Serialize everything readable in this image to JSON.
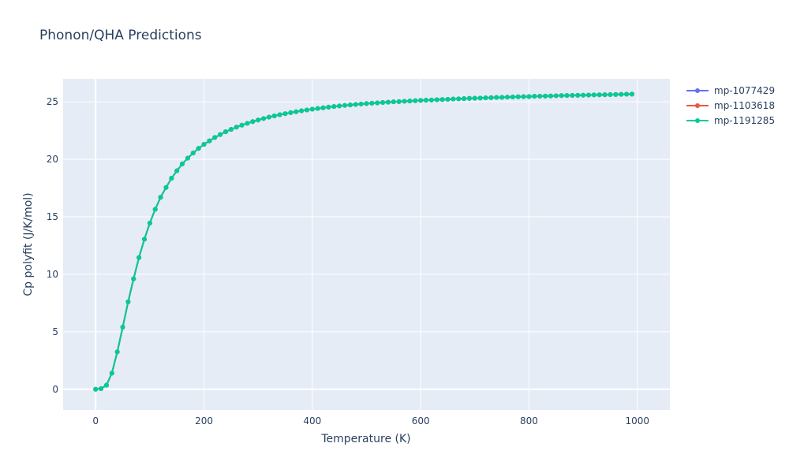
{
  "chart_data": {
    "type": "line",
    "title": "Phonon/QHA Predictions",
    "xlabel": "Temperature (K)",
    "ylabel": "Cp polyfit (J/K/mol)",
    "xlim": [
      -60,
      1060
    ],
    "ylim": [
      -1.8,
      27.0
    ],
    "xticks": [
      0,
      200,
      400,
      600,
      800,
      1000
    ],
    "yticks": [
      0,
      5,
      10,
      15,
      20,
      25
    ],
    "grid": true,
    "legend_position": "top-right",
    "x": [
      0,
      10,
      20,
      30,
      40,
      50,
      60,
      70,
      80,
      90,
      100,
      110,
      120,
      130,
      140,
      150,
      160,
      170,
      180,
      190,
      200,
      210,
      220,
      230,
      240,
      250,
      260,
      270,
      280,
      290,
      300,
      310,
      320,
      330,
      340,
      350,
      360,
      370,
      380,
      390,
      400,
      410,
      420,
      430,
      440,
      450,
      460,
      470,
      480,
      490,
      500,
      510,
      520,
      530,
      540,
      550,
      560,
      570,
      580,
      590,
      600,
      610,
      620,
      630,
      640,
      650,
      660,
      670,
      680,
      690,
      700,
      710,
      720,
      730,
      740,
      750,
      760,
      770,
      780,
      790,
      800,
      810,
      820,
      830,
      840,
      850,
      860,
      870,
      880,
      890,
      900,
      910,
      920,
      930,
      940,
      950,
      960,
      970,
      980,
      990
    ],
    "series": [
      {
        "name": "mp-1077429",
        "color": "#636efa",
        "values": [
          0,
          0.05,
          0.35,
          1.4,
          3.25,
          5.4,
          7.6,
          9.6,
          11.45,
          13.05,
          14.45,
          15.65,
          16.7,
          17.55,
          18.35,
          19.0,
          19.6,
          20.1,
          20.55,
          20.95,
          21.3,
          21.6,
          21.9,
          22.15,
          22.4,
          22.6,
          22.8,
          22.97,
          23.13,
          23.28,
          23.42,
          23.55,
          23.67,
          23.78,
          23.88,
          23.97,
          24.06,
          24.14,
          24.22,
          24.29,
          24.36,
          24.42,
          24.48,
          24.54,
          24.59,
          24.64,
          24.69,
          24.73,
          24.77,
          24.81,
          24.85,
          24.88,
          24.91,
          24.94,
          24.97,
          25.0,
          25.02,
          25.05,
          25.07,
          25.1,
          25.12,
          25.14,
          25.16,
          25.18,
          25.2,
          25.22,
          25.24,
          25.26,
          25.28,
          25.3,
          25.31,
          25.33,
          25.35,
          25.36,
          25.38,
          25.39,
          25.41,
          25.42,
          25.44,
          25.45,
          25.46,
          25.48,
          25.49,
          25.5,
          25.51,
          25.53,
          25.54,
          25.55,
          25.56,
          25.57,
          25.58,
          25.59,
          25.6,
          25.61,
          25.62,
          25.63,
          25.64,
          25.65,
          25.66,
          25.67
        ]
      },
      {
        "name": "mp-1103618",
        "color": "#ef553b",
        "values": [
          0,
          0.05,
          0.35,
          1.4,
          3.25,
          5.4,
          7.6,
          9.6,
          11.45,
          13.05,
          14.45,
          15.65,
          16.7,
          17.55,
          18.35,
          19.0,
          19.6,
          20.1,
          20.55,
          20.95,
          21.3,
          21.6,
          21.9,
          22.15,
          22.4,
          22.6,
          22.8,
          22.97,
          23.13,
          23.28,
          23.42,
          23.55,
          23.67,
          23.78,
          23.88,
          23.97,
          24.06,
          24.14,
          24.22,
          24.29,
          24.36,
          24.42,
          24.48,
          24.54,
          24.59,
          24.64,
          24.69,
          24.73,
          24.77,
          24.81,
          24.85,
          24.88,
          24.91,
          24.94,
          24.97,
          25.0,
          25.02,
          25.05,
          25.07,
          25.1,
          25.12,
          25.14,
          25.16,
          25.18,
          25.2,
          25.22,
          25.24,
          25.26,
          25.28,
          25.3,
          25.31,
          25.33,
          25.35,
          25.36,
          25.38,
          25.39,
          25.41,
          25.42,
          25.44,
          25.45,
          25.46,
          25.48,
          25.49,
          25.5,
          25.51,
          25.53,
          25.54,
          25.55,
          25.56,
          25.57,
          25.58,
          25.59,
          25.6,
          25.61,
          25.62,
          25.63,
          25.64,
          25.65,
          25.66,
          25.67
        ]
      },
      {
        "name": "mp-1191285",
        "color": "#00cc96",
        "values": [
          0,
          0.05,
          0.35,
          1.4,
          3.25,
          5.4,
          7.6,
          9.6,
          11.45,
          13.05,
          14.45,
          15.65,
          16.7,
          17.55,
          18.35,
          19.0,
          19.6,
          20.1,
          20.55,
          20.95,
          21.3,
          21.6,
          21.9,
          22.15,
          22.4,
          22.6,
          22.8,
          22.97,
          23.13,
          23.28,
          23.42,
          23.55,
          23.67,
          23.78,
          23.88,
          23.97,
          24.06,
          24.14,
          24.22,
          24.29,
          24.36,
          24.42,
          24.48,
          24.54,
          24.59,
          24.64,
          24.69,
          24.73,
          24.77,
          24.81,
          24.85,
          24.88,
          24.91,
          24.94,
          24.97,
          25.0,
          25.02,
          25.05,
          25.07,
          25.1,
          25.12,
          25.14,
          25.16,
          25.18,
          25.2,
          25.22,
          25.24,
          25.26,
          25.28,
          25.3,
          25.31,
          25.33,
          25.35,
          25.36,
          25.38,
          25.39,
          25.41,
          25.42,
          25.44,
          25.45,
          25.46,
          25.48,
          25.49,
          25.5,
          25.51,
          25.53,
          25.54,
          25.55,
          25.56,
          25.57,
          25.58,
          25.59,
          25.6,
          25.61,
          25.62,
          25.63,
          25.64,
          25.65,
          25.66,
          25.67
        ]
      }
    ],
    "colors": {
      "plot_bg": "#e5ecf6",
      "grid": "#ffffff",
      "text": "#2a3f5f"
    }
  }
}
